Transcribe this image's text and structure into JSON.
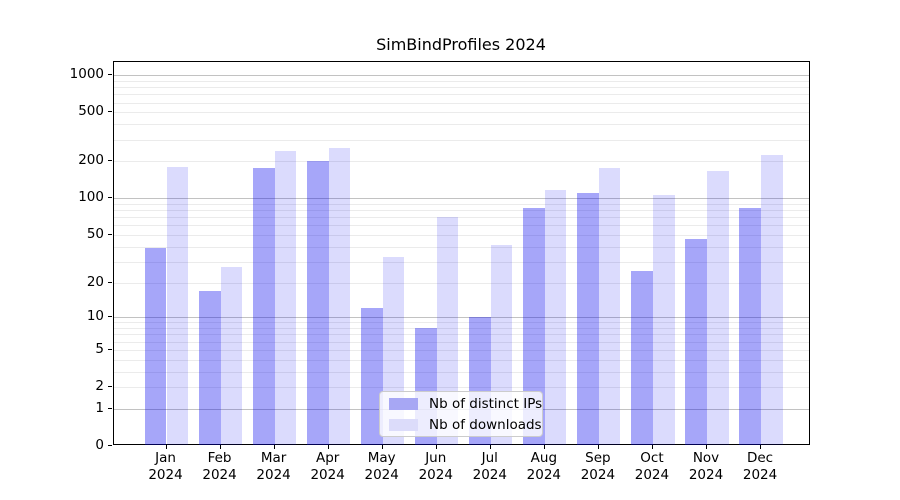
{
  "title": "SimBindProfiles 2024",
  "legend": {
    "items": [
      {
        "label": "Nb of distinct IPs",
        "swatch": "#a7a7f4"
      },
      {
        "label": "Nb of downloads",
        "swatch": "#dcdcfa"
      }
    ]
  },
  "colors": {
    "ips_bar": "rgba(0,0,238,0.35)",
    "downloads_bar": "rgba(0,0,238,0.14)",
    "major_grid": "#c2c2c2",
    "minor_grid": "#ebebeb",
    "axis": "#000000"
  },
  "chart_data": {
    "type": "bar",
    "title": "SimBindProfiles 2024",
    "categories": [
      "Jan",
      "Feb",
      "Mar",
      "Apr",
      "May",
      "Jun",
      "Jul",
      "Aug",
      "Sep",
      "Oct",
      "Nov",
      "Dec"
    ],
    "year": "2024",
    "series": [
      {
        "name": "Nb of distinct IPs",
        "color": "rgba(0,0,238,0.35)",
        "values": [
          39,
          17,
          176,
          203,
          12,
          8,
          10,
          84,
          110,
          25,
          46,
          84
        ]
      },
      {
        "name": "Nb of downloads",
        "color": "rgba(0,0,238,0.14)",
        "values": [
          179,
          27,
          241,
          257,
          33,
          70,
          41,
          118,
          177,
          106,
          166,
          224
        ]
      }
    ],
    "xlabel": "",
    "ylabel": "",
    "yticks": [
      0,
      1,
      2,
      5,
      10,
      20,
      50,
      100,
      200,
      500,
      1000
    ],
    "y_scale": "log10(1+x)",
    "ylim": [
      0,
      1300
    ],
    "grid": true,
    "legend_position": "lower center"
  }
}
